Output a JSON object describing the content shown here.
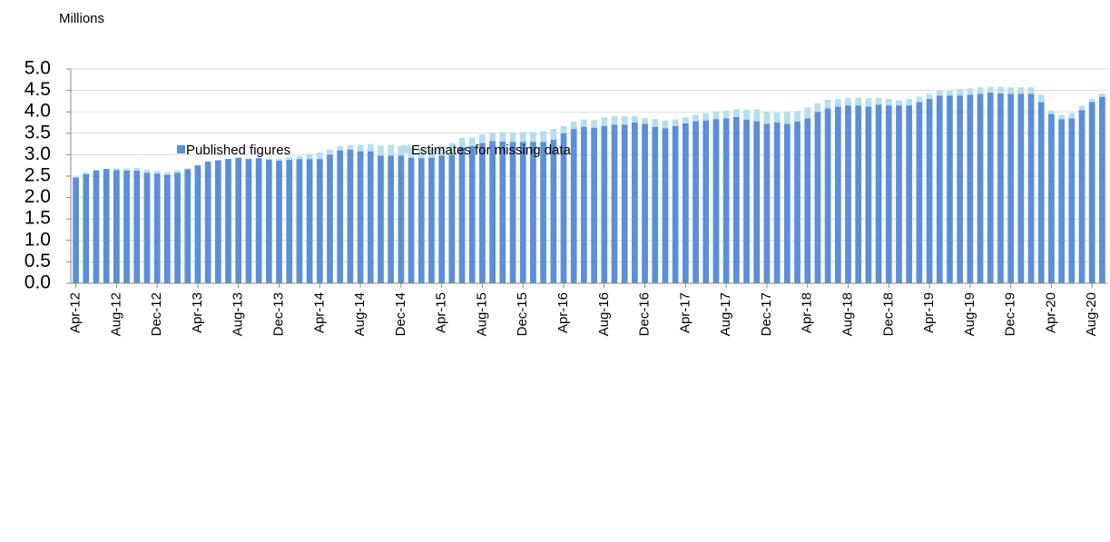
{
  "chart_data": {
    "type": "stacked_bar",
    "title": "Millions",
    "categories": [
      "Apr-12",
      null,
      null,
      null,
      "Aug-12",
      null,
      null,
      null,
      "Dec-12",
      null,
      null,
      null,
      "Apr-13",
      null,
      null,
      null,
      "Aug-13",
      null,
      null,
      null,
      "Dec-13",
      null,
      null,
      null,
      "Apr-14",
      null,
      null,
      null,
      "Aug-14",
      null,
      null,
      null,
      "Dec-14",
      null,
      null,
      null,
      "Apr-15",
      null,
      null,
      null,
      "Aug-15",
      null,
      null,
      null,
      "Dec-15",
      null,
      null,
      null,
      "Apr-16",
      null,
      null,
      null,
      "Aug-16",
      null,
      null,
      null,
      "Dec-16",
      null,
      null,
      null,
      "Apr-17",
      null,
      null,
      null,
      "Aug-17",
      null,
      null,
      null,
      "Dec-17",
      null,
      null,
      null,
      "Apr-18",
      null,
      null,
      null,
      "Aug-18",
      null,
      null,
      null,
      "Dec-18",
      null,
      null,
      null,
      "Apr-19",
      null,
      null,
      null,
      "Aug-19",
      null,
      null,
      null,
      "Dec-19",
      null,
      null,
      null,
      "Apr-20",
      null,
      null,
      null,
      "Aug-20",
      null
    ],
    "series": [
      {
        "name": "Published figures",
        "color": "#5b8fd7",
        "values": [
          2.47,
          2.55,
          2.63,
          2.67,
          2.64,
          2.63,
          2.63,
          2.58,
          2.56,
          2.53,
          2.58,
          2.66,
          2.75,
          2.84,
          2.87,
          2.9,
          2.93,
          2.9,
          2.92,
          2.88,
          2.86,
          2.88,
          2.9,
          2.9,
          2.9,
          3.0,
          3.1,
          3.12,
          3.08,
          3.08,
          2.98,
          2.98,
          2.98,
          2.93,
          2.92,
          2.93,
          2.98,
          3.0,
          3.17,
          3.2,
          3.27,
          3.32,
          3.31,
          3.3,
          3.3,
          3.3,
          3.3,
          3.35,
          3.5,
          3.6,
          3.65,
          3.63,
          3.67,
          3.7,
          3.7,
          3.75,
          3.72,
          3.65,
          3.62,
          3.67,
          3.73,
          3.78,
          3.8,
          3.83,
          3.85,
          3.88,
          3.82,
          3.78,
          3.72,
          3.75,
          3.72,
          3.77,
          3.85,
          4.0,
          4.08,
          4.12,
          4.15,
          4.15,
          4.12,
          4.17,
          4.15,
          4.15,
          4.15,
          4.23,
          4.3,
          4.38,
          4.38,
          4.38,
          4.4,
          4.42,
          4.45,
          4.43,
          4.42,
          4.42,
          4.42,
          4.23,
          3.95,
          3.83,
          3.85,
          4.04,
          4.23,
          4.35
        ]
      },
      {
        "name": "Estimates for missing data",
        "color": "#b5dfe9",
        "values": [
          0,
          0.03,
          0.02,
          0,
          0.04,
          0.05,
          0.06,
          0.07,
          0.06,
          0.06,
          0.05,
          0.02,
          0,
          0,
          0,
          0,
          0,
          0.02,
          0,
          0.02,
          0.04,
          0.06,
          0.07,
          0.12,
          0.15,
          0.12,
          0.1,
          0.1,
          0.15,
          0.17,
          0.23,
          0.25,
          0.22,
          0.24,
          0.22,
          0.2,
          0.22,
          0.27,
          0.22,
          0.2,
          0.2,
          0.2,
          0.22,
          0.22,
          0.23,
          0.23,
          0.25,
          0.25,
          0.17,
          0.17,
          0.17,
          0.18,
          0.2,
          0.2,
          0.2,
          0.15,
          0.13,
          0.18,
          0.18,
          0.15,
          0.15,
          0.15,
          0.17,
          0.18,
          0.18,
          0.18,
          0.23,
          0.28,
          0.28,
          0.23,
          0.28,
          0.25,
          0.25,
          0.2,
          0.2,
          0.18,
          0.17,
          0.18,
          0.2,
          0.15,
          0.15,
          0.12,
          0.15,
          0.12,
          0.12,
          0.12,
          0.12,
          0.15,
          0.15,
          0.15,
          0.13,
          0.15,
          0.15,
          0.15,
          0.15,
          0.17,
          0.08,
          0.1,
          0.12,
          0.1,
          0.07,
          0.08
        ]
      }
    ],
    "ylim": [
      0,
      5
    ],
    "yticks": [
      {
        "value": 0,
        "label": "0.0"
      },
      0.5,
      {
        "value": 1,
        "label": "1.0"
      },
      1.5,
      {
        "value": 2,
        "label": "2.0"
      },
      2.5,
      {
        "value": 3,
        "label": "3.0"
      },
      3.5,
      {
        "value": 4,
        "label": "4.0"
      },
      4.5,
      {
        "value": 5,
        "label": "5.0"
      }
    ],
    "grid": true
  }
}
